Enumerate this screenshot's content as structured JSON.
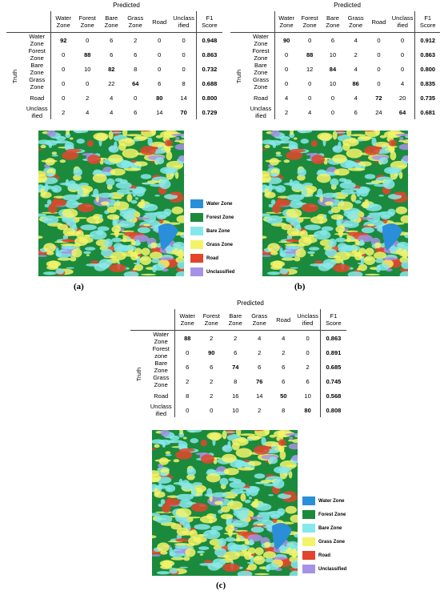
{
  "panels": [
    {
      "label": "(a)",
      "top_label": "Predicted",
      "side_label": "Truth",
      "columns": [
        "Water\nZone",
        "Forest\nZone",
        "Bare\nZone",
        "Grass\nZone",
        "Road",
        "Unclass\nified"
      ],
      "f1_header": "F1\nScore",
      "rows": [
        {
          "name": "Water\nZone",
          "values": [
            92,
            0,
            6,
            2,
            0,
            0
          ],
          "f1": "0.948"
        },
        {
          "name": "Forest\nZone",
          "values": [
            0,
            88,
            6,
            6,
            0,
            0
          ],
          "f1": "0.863"
        },
        {
          "name": "Bare\nZone",
          "values": [
            0,
            10,
            82,
            8,
            0,
            0
          ],
          "f1": "0.732"
        },
        {
          "name": "Grass\nZone",
          "values": [
            0,
            0,
            22,
            64,
            6,
            8
          ],
          "f1": "0.688"
        },
        {
          "name": "Road",
          "values": [
            0,
            2,
            4,
            0,
            80,
            14
          ],
          "f1": "0.800"
        },
        {
          "name": "Unclass\nified",
          "values": [
            2,
            4,
            4,
            6,
            14,
            70
          ],
          "f1": "0.729"
        }
      ]
    },
    {
      "label": "(b)",
      "top_label": "Predicted",
      "side_label": "Truth",
      "columns": [
        "Water\nZone",
        "Forest\nZone",
        "Bare\nZone",
        "Grass\nZone",
        "Road",
        "Unclass\nified"
      ],
      "f1_header": "F1\nScore",
      "rows": [
        {
          "name": "Water\nZone",
          "values": [
            90,
            0,
            6,
            4,
            0,
            0
          ],
          "f1": "0.912"
        },
        {
          "name": "Forest\nZone",
          "values": [
            0,
            88,
            10,
            2,
            0,
            0
          ],
          "f1": "0.863"
        },
        {
          "name": "Bare\nZone",
          "values": [
            0,
            12,
            84,
            4,
            0,
            0
          ],
          "f1": "0.800"
        },
        {
          "name": "Grass\nZone",
          "values": [
            0,
            0,
            10,
            86,
            0,
            4
          ],
          "f1": "0.835"
        },
        {
          "name": "Road",
          "values": [
            4,
            0,
            0,
            4,
            72,
            20
          ],
          "f1": "0.735"
        },
        {
          "name": "Unclass\nified",
          "values": [
            2,
            4,
            0,
            6,
            24,
            64
          ],
          "f1": "0.681"
        }
      ]
    },
    {
      "label": "(c)",
      "top_label": "Predicted",
      "side_label": "Truth",
      "columns": [
        "Water\nZone",
        "Forest\nZone",
        "Bare\nZone",
        "Grass\nZone",
        "Road",
        "Unclass\nified"
      ],
      "f1_header": "F1\nScore",
      "rows": [
        {
          "name": "Water\nZone",
          "values": [
            88,
            2,
            2,
            4,
            4,
            0
          ],
          "f1": "0.863"
        },
        {
          "name": "Forest\nzone",
          "values": [
            0,
            90,
            6,
            2,
            2,
            0
          ],
          "f1": "0.891"
        },
        {
          "name": "Bare\nZone",
          "values": [
            6,
            6,
            74,
            6,
            6,
            2
          ],
          "f1": "0.685"
        },
        {
          "name": "Grass\nZone",
          "values": [
            2,
            2,
            8,
            76,
            6,
            6
          ],
          "f1": "0.745"
        },
        {
          "name": "Road",
          "values": [
            8,
            2,
            16,
            14,
            50,
            10
          ],
          "f1": "0.568"
        },
        {
          "name": "Unclass\nified",
          "values": [
            0,
            0,
            10,
            2,
            8,
            80
          ],
          "f1": "0.808"
        }
      ]
    }
  ],
  "legend": [
    "Water Zone",
    "Forest Zone",
    "Bare Zone",
    "Grass Zone",
    "Road",
    "Unclassified"
  ]
}
